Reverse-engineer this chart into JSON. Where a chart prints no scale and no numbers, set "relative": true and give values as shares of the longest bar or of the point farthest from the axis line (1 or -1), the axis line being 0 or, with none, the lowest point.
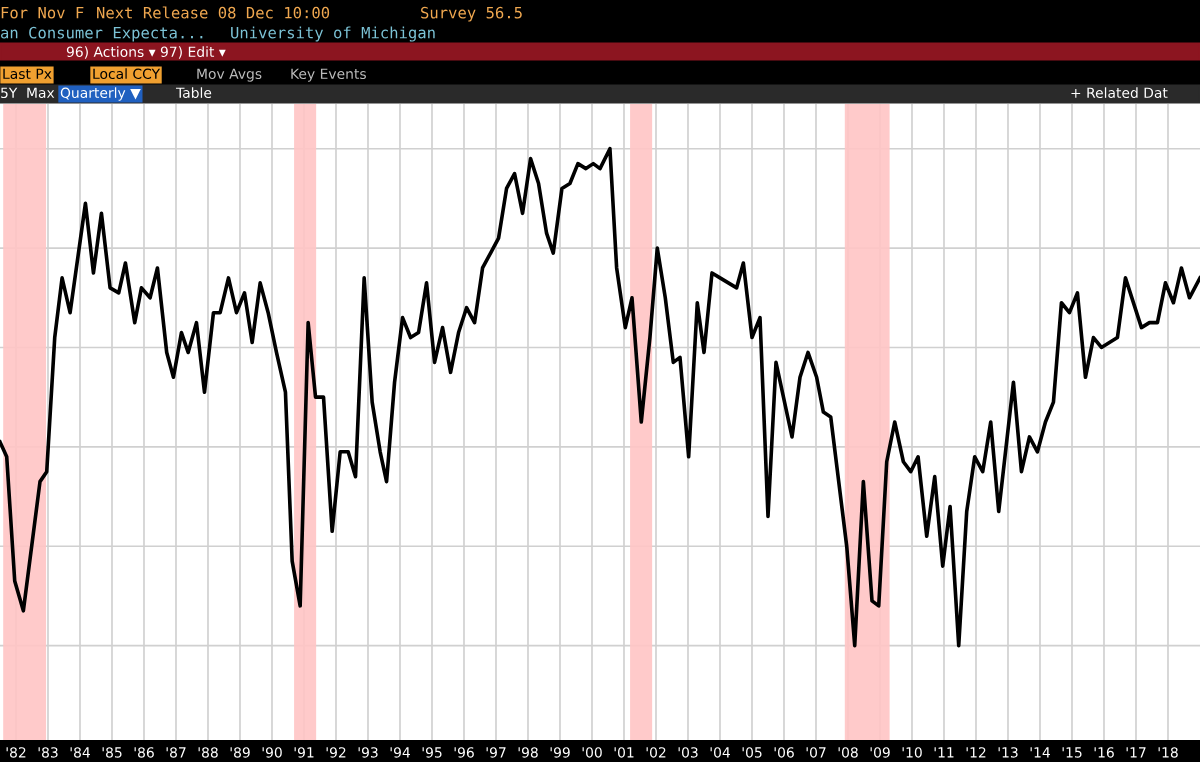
{
  "chart_data": {
    "type": "line",
    "title": "an Consumer Expecta...",
    "subtitle": "University of Michigan",
    "annotations": [
      "For Nov F",
      "Next Release 08 Dec 10:00",
      "Survey 56.5",
      "96) Actions ▾",
      "97) Edit ▾",
      "Last Px",
      "Local CCY",
      "Mov Avgs",
      "Key Events",
      "5Y",
      "Max",
      "Quarterly ▼",
      "Table",
      "+ Related Dat"
    ],
    "relative": true,
    "grid": true,
    "legend": false,
    "marker": "none",
    "line_style": "solid",
    "xlim": [
      1981.5,
      2019.0
    ],
    "xticks": [
      {
        "value": 1982,
        "label": "'82"
      },
      {
        "value": 1983,
        "label": "'83"
      },
      {
        "value": 1984,
        "label": "'84"
      },
      {
        "value": 1985,
        "label": "'85"
      },
      {
        "value": 1986,
        "label": "'86"
      },
      {
        "value": 1987,
        "label": "'87"
      },
      {
        "value": 1988,
        "label": "'88"
      },
      {
        "value": 1989,
        "label": "'89"
      },
      {
        "value": 1990,
        "label": "'90"
      },
      {
        "value": 1991,
        "label": "'91"
      },
      {
        "value": 1992,
        "label": "'92"
      },
      {
        "value": 1993,
        "label": "'93"
      },
      {
        "value": 1994,
        "label": "'94"
      },
      {
        "value": 1995,
        "label": "'95"
      },
      {
        "value": 1996,
        "label": "'96"
      },
      {
        "value": 1997,
        "label": "'97"
      },
      {
        "value": 1998,
        "label": "'98"
      },
      {
        "value": 1999,
        "label": "'99"
      },
      {
        "value": 2000,
        "label": "'00"
      },
      {
        "value": 2001,
        "label": "'01"
      },
      {
        "value": 2002,
        "label": "'02"
      },
      {
        "value": 2003,
        "label": "'03"
      },
      {
        "value": 2004,
        "label": "'04"
      },
      {
        "value": 2005,
        "label": "'05"
      },
      {
        "value": 2006,
        "label": "'06"
      },
      {
        "value": 2007,
        "label": "'07"
      },
      {
        "value": 2008,
        "label": "'08"
      },
      {
        "value": 2009,
        "label": "'09"
      },
      {
        "value": 2010,
        "label": "'10"
      },
      {
        "value": 2011,
        "label": "'11"
      },
      {
        "value": 2012,
        "label": "'12"
      },
      {
        "value": 2013,
        "label": "'13"
      },
      {
        "value": 2014,
        "label": "'14"
      },
      {
        "value": 2015,
        "label": "'15"
      },
      {
        "value": 2016,
        "label": "'16"
      },
      {
        "value": 2017,
        "label": "'17"
      },
      {
        "value": 2018,
        "label": "'18"
      }
    ],
    "bands": [
      {
        "axis": "x",
        "from": 1981.6,
        "to": 1982.94,
        "color": "#ffc4c4"
      },
      {
        "axis": "x",
        "from": 1990.69,
        "to": 1991.38,
        "color": "#ffc4c4"
      },
      {
        "axis": "x",
        "from": 2001.19,
        "to": 2001.88,
        "color": "#ffc4c4"
      },
      {
        "axis": "x",
        "from": 2007.9,
        "to": 2009.3,
        "color": "#ffc4c4"
      }
    ],
    "series": [
      {
        "color": "#000000",
        "x": [
          1981.5,
          1981.71,
          1981.96,
          1982.23,
          1982.75,
          1982.96,
          1983.21,
          1983.44,
          1983.69,
          1984.17,
          1984.42,
          1984.67,
          1984.94,
          1985.21,
          1985.42,
          1985.71,
          1985.92,
          1986.19,
          1986.42,
          1986.71,
          1986.92,
          1987.17,
          1987.38,
          1987.64,
          1987.89,
          1988.17,
          1988.38,
          1988.64,
          1988.89,
          1989.14,
          1989.38,
          1989.63,
          1989.88,
          1990.14,
          1990.42,
          1990.63,
          1990.88,
          1991.13,
          1991.36,
          1991.61,
          1991.88,
          1992.13,
          1992.38,
          1992.61,
          1992.88,
          1993.13,
          1993.38,
          1993.58,
          1993.83,
          1994.08,
          1994.33,
          1994.58,
          1994.83,
          1995.08,
          1995.33,
          1995.58,
          1995.83,
          1996.08,
          1996.33,
          1996.58,
          1996.83,
          1997.08,
          1997.33,
          1997.58,
          1997.83,
          1998.08,
          1998.33,
          1998.58,
          1998.79,
          1999.06,
          1999.31,
          1999.56,
          1999.81,
          2000.04,
          2000.25,
          2000.56,
          2000.77,
          2001.04,
          2001.25,
          2001.54,
          2001.81,
          2002.04,
          2002.29,
          2002.54,
          2002.75,
          2003.02,
          2003.29,
          2003.5,
          2003.75,
          2004.0,
          2004.52,
          2004.73,
          2005.0,
          2005.25,
          2005.5,
          2005.75,
          2006.25,
          2006.5,
          2006.75,
          2007.02,
          2007.23,
          2007.46,
          2007.96,
          2008.21,
          2008.48,
          2008.75,
          2008.96,
          2009.21,
          2009.46,
          2009.73,
          2009.96,
          2010.19,
          2010.46,
          2010.71,
          2010.96,
          2011.19,
          2011.46,
          2011.71,
          2011.96,
          2012.21,
          2012.46,
          2012.71,
          2013.17,
          2013.42,
          2013.67,
          2013.92,
          2014.17,
          2014.42,
          2014.67,
          2014.92,
          2015.17,
          2015.42,
          2015.67,
          2015.92,
          2016.17,
          2016.42,
          2016.67,
          2017.17,
          2017.42,
          2017.67,
          2017.92,
          2018.17,
          2018.42,
          2018.67,
          2019.0
        ],
        "values": [
          0.41,
          0.38,
          0.13,
          0.07,
          0.33,
          0.35,
          0.62,
          0.74,
          0.67,
          0.89,
          0.75,
          0.87,
          0.72,
          0.71,
          0.77,
          0.65,
          0.72,
          0.7,
          0.76,
          0.59,
          0.54,
          0.63,
          0.59,
          0.65,
          0.51,
          0.67,
          0.67,
          0.74,
          0.67,
          0.71,
          0.61,
          0.73,
          0.67,
          0.59,
          0.51,
          0.17,
          0.08,
          0.65,
          0.5,
          0.5,
          0.23,
          0.39,
          0.39,
          0.34,
          0.74,
          0.49,
          0.39,
          0.33,
          0.53,
          0.66,
          0.62,
          0.63,
          0.73,
          0.57,
          0.64,
          0.55,
          0.63,
          0.68,
          0.65,
          0.76,
          0.79,
          0.82,
          0.92,
          0.95,
          0.87,
          0.98,
          0.93,
          0.83,
          0.79,
          0.92,
          0.93,
          0.97,
          0.96,
          0.97,
          0.96,
          1.0,
          0.76,
          0.64,
          0.7,
          0.45,
          0.62,
          0.8,
          0.7,
          0.57,
          0.58,
          0.38,
          0.69,
          0.59,
          0.75,
          0.74,
          0.72,
          0.77,
          0.62,
          0.66,
          0.26,
          0.57,
          0.42,
          0.54,
          0.59,
          0.54,
          0.47,
          0.46,
          0.2,
          0.0,
          0.33,
          0.09,
          0.08,
          0.37,
          0.45,
          0.37,
          0.35,
          0.38,
          0.22,
          0.34,
          0.16,
          0.28,
          0.0,
          0.27,
          0.38,
          0.35,
          0.45,
          0.27,
          0.53,
          0.35,
          0.42,
          0.39,
          0.45,
          0.49,
          0.69,
          0.67,
          0.71,
          0.54,
          0.62,
          0.6,
          0.61,
          0.62,
          0.74,
          0.64,
          0.65,
          0.65,
          0.73,
          0.69,
          0.76,
          0.7,
          0.74
        ]
      }
    ]
  }
}
